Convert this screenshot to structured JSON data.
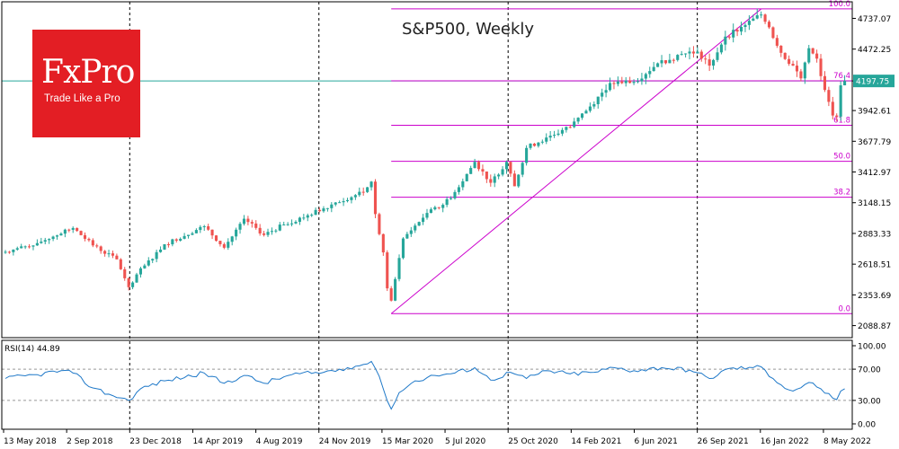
{
  "chart_data": {
    "type": "candlestick",
    "title": "S&P500, Weekly",
    "brand": {
      "name": "FxPro",
      "tagline": "Trade Like a Pro",
      "color": "#e31e24"
    },
    "colors": {
      "up": "#26a69a",
      "down": "#ef5350",
      "fib": "#cc00cc",
      "price_line": "#26a69a",
      "rsi": "#1e78c8",
      "grid": "#000000"
    },
    "price_axis": {
      "ticks": [
        4737.07,
        4472.25,
        4197.75,
        3942.61,
        3677.79,
        3412.97,
        3148.15,
        2883.33,
        2618.51,
        2353.69,
        2088.87
      ],
      "labels": [
        "4737.07",
        "4472.25",
        "",
        "3942.61",
        "3677.79",
        "3412.97",
        "3148.15",
        "2883.33",
        "2618.51",
        "2353.69",
        "2088.87"
      ],
      "range": [
        1985,
        4880
      ]
    },
    "time_axis": {
      "labels": [
        "13 May 2018",
        "2 Sep 2018",
        "23 Dec 2018",
        "14 Apr 2019",
        "4 Aug 2019",
        "24 Nov 2019",
        "15 Mar 2020",
        "5 Jul 2020",
        "25 Oct 2020",
        "14 Feb 2021",
        "6 Jun 2021",
        "26 Sep 2021",
        "16 Jan 2022",
        "8 May 2022"
      ],
      "separators": [
        "23 Dec 2018",
        "24 Nov 2019",
        "25 Oct 2020",
        "26 Sep 2021"
      ]
    },
    "current_price": {
      "value": 4197.75,
      "label": "4197.75"
    },
    "fibonacci": {
      "low": 2191.86,
      "high": 4818.62,
      "levels": [
        {
          "ratio": 1.0,
          "label": "100.0"
        },
        {
          "ratio": 0.764,
          "label": "76.4"
        },
        {
          "ratio": 0.618,
          "label": "61.8"
        },
        {
          "ratio": 0.5,
          "label": "50.0"
        },
        {
          "ratio": 0.382,
          "label": "38.2"
        },
        {
          "ratio": 0.0,
          "label": "0.0"
        }
      ]
    },
    "trendline": {
      "from": {
        "week": 97,
        "price": 2191.86
      },
      "to": {
        "week": 190,
        "price": 4818.62
      }
    },
    "series_weeks": 212,
    "key_closes": [
      {
        "week": 0,
        "price": 2725
      },
      {
        "week": 8,
        "price": 2800
      },
      {
        "week": 17,
        "price": 2930
      },
      {
        "week": 22,
        "price": 2780
      },
      {
        "week": 28,
        "price": 2660
      },
      {
        "week": 31,
        "price": 2420
      },
      {
        "week": 33,
        "price": 2530
      },
      {
        "week": 40,
        "price": 2790
      },
      {
        "week": 50,
        "price": 2945
      },
      {
        "week": 55,
        "price": 2760
      },
      {
        "week": 60,
        "price": 3010
      },
      {
        "week": 65,
        "price": 2870
      },
      {
        "week": 70,
        "price": 2960
      },
      {
        "week": 76,
        "price": 3040
      },
      {
        "week": 83,
        "price": 3150
      },
      {
        "week": 90,
        "price": 3240
      },
      {
        "week": 92,
        "price": 3330
      },
      {
        "week": 93,
        "price": 3050
      },
      {
        "week": 95,
        "price": 2720
      },
      {
        "week": 96,
        "price": 2410
      },
      {
        "week": 97,
        "price": 2304
      },
      {
        "week": 98,
        "price": 2490
      },
      {
        "week": 100,
        "price": 2840
      },
      {
        "week": 106,
        "price": 3060
      },
      {
        "week": 110,
        "price": 3130
      },
      {
        "week": 113,
        "price": 3240
      },
      {
        "week": 118,
        "price": 3500
      },
      {
        "week": 122,
        "price": 3320
      },
      {
        "week": 126,
        "price": 3500
      },
      {
        "week": 128,
        "price": 3290
      },
      {
        "week": 131,
        "price": 3620
      },
      {
        "week": 136,
        "price": 3710
      },
      {
        "week": 142,
        "price": 3800
      },
      {
        "week": 146,
        "price": 3940
      },
      {
        "week": 152,
        "price": 4180
      },
      {
        "week": 158,
        "price": 4190
      },
      {
        "week": 164,
        "price": 4350
      },
      {
        "week": 170,
        "price": 4430
      },
      {
        "week": 174,
        "price": 4450
      },
      {
        "week": 177,
        "price": 4330
      },
      {
        "week": 181,
        "price": 4580
      },
      {
        "week": 186,
        "price": 4680
      },
      {
        "week": 190,
        "price": 4770
      },
      {
        "week": 192,
        "price": 4660
      },
      {
        "week": 195,
        "price": 4440
      },
      {
        "week": 198,
        "price": 4330
      },
      {
        "week": 200,
        "price": 4220
      },
      {
        "week": 202,
        "price": 4480
      },
      {
        "week": 204,
        "price": 4390
      },
      {
        "week": 206,
        "price": 4120
      },
      {
        "week": 208,
        "price": 3900
      },
      {
        "week": 209,
        "price": 3890
      },
      {
        "week": 210,
        "price": 4160
      },
      {
        "week": 211,
        "price": 4197.75
      }
    ],
    "rsi": {
      "label": "RSI(14) 44.89",
      "period": 14,
      "current": 44.89,
      "ticks": [
        100.0,
        70.0,
        30.0,
        0.0
      ],
      "labels": [
        "100.00",
        "70.00",
        "30.00",
        "0.00"
      ],
      "levels": [
        70,
        30
      ],
      "key_values": [
        {
          "week": 0,
          "value": 58
        },
        {
          "week": 8,
          "value": 63
        },
        {
          "week": 14,
          "value": 68
        },
        {
          "week": 17,
          "value": 65
        },
        {
          "week": 22,
          "value": 46
        },
        {
          "week": 26,
          "value": 38
        },
        {
          "week": 31,
          "value": 30
        },
        {
          "week": 34,
          "value": 45
        },
        {
          "week": 40,
          "value": 55
        },
        {
          "week": 50,
          "value": 65
        },
        {
          "week": 55,
          "value": 52
        },
        {
          "week": 60,
          "value": 62
        },
        {
          "week": 65,
          "value": 52
        },
        {
          "week": 72,
          "value": 63
        },
        {
          "week": 80,
          "value": 66
        },
        {
          "week": 86,
          "value": 72
        },
        {
          "week": 90,
          "value": 76
        },
        {
          "week": 92,
          "value": 80
        },
        {
          "week": 93,
          "value": 71
        },
        {
          "week": 95,
          "value": 45
        },
        {
          "week": 97,
          "value": 19
        },
        {
          "week": 99,
          "value": 40
        },
        {
          "week": 103,
          "value": 55
        },
        {
          "week": 108,
          "value": 62
        },
        {
          "week": 113,
          "value": 65
        },
        {
          "week": 118,
          "value": 72
        },
        {
          "week": 122,
          "value": 56
        },
        {
          "week": 127,
          "value": 66
        },
        {
          "week": 131,
          "value": 58
        },
        {
          "week": 136,
          "value": 68
        },
        {
          "week": 142,
          "value": 64
        },
        {
          "week": 148,
          "value": 66
        },
        {
          "week": 153,
          "value": 72
        },
        {
          "week": 158,
          "value": 68
        },
        {
          "week": 165,
          "value": 72
        },
        {
          "week": 172,
          "value": 69
        },
        {
          "week": 177,
          "value": 58
        },
        {
          "week": 182,
          "value": 71
        },
        {
          "week": 188,
          "value": 72
        },
        {
          "week": 190,
          "value": 73
        },
        {
          "week": 193,
          "value": 58
        },
        {
          "week": 195,
          "value": 50
        },
        {
          "week": 198,
          "value": 42
        },
        {
          "week": 202,
          "value": 53
        },
        {
          "week": 205,
          "value": 45
        },
        {
          "week": 208,
          "value": 33
        },
        {
          "week": 209,
          "value": 31
        },
        {
          "week": 210,
          "value": 42
        },
        {
          "week": 211,
          "value": 44.89
        }
      ]
    }
  }
}
